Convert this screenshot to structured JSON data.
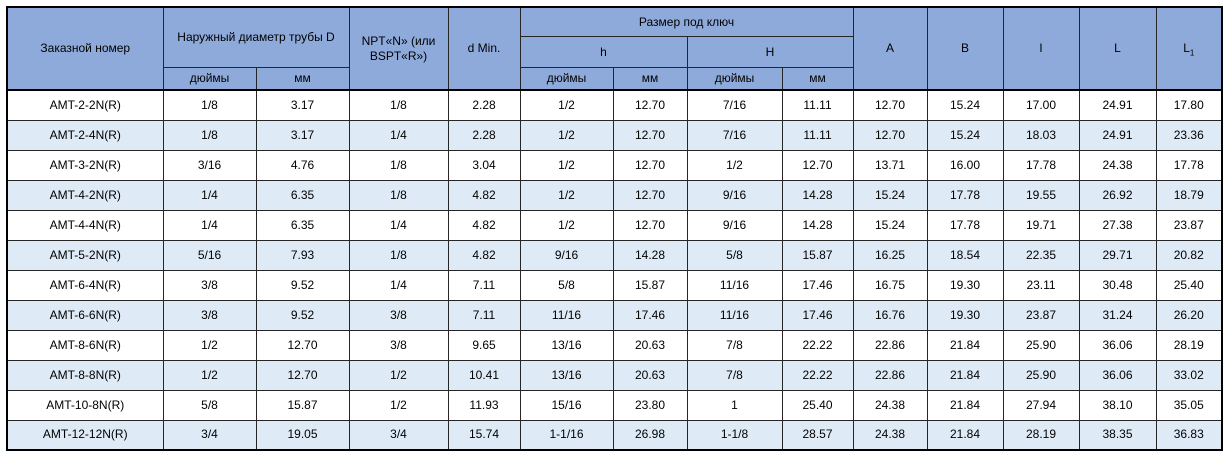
{
  "table": {
    "header": {
      "order_number": "Заказной номер",
      "outer_diameter": "Наружный диаметр трубы D",
      "npt": "NPT«N» (или BSPT«R»)",
      "d_min": "d Min.",
      "wrench_size": "Размер под ключ",
      "h_small": "h",
      "h_big": "H",
      "inches": "дюймы",
      "mm": "мм",
      "col_a": "A",
      "col_b": "B",
      "col_l_small": "l",
      "col_l": "L",
      "col_l1_base": "L",
      "col_l1_sub": "1"
    },
    "rows": [
      [
        "AMT-2-2N(R)",
        "1/8",
        "3.17",
        "1/8",
        "2.28",
        "1/2",
        "12.70",
        "7/16",
        "11.11",
        "12.70",
        "15.24",
        "17.00",
        "24.91",
        "17.80"
      ],
      [
        "AMT-2-4N(R)",
        "1/8",
        "3.17",
        "1/4",
        "2.28",
        "1/2",
        "12.70",
        "7/16",
        "11.11",
        "12.70",
        "15.24",
        "18.03",
        "24.91",
        "23.36"
      ],
      [
        "AMT-3-2N(R)",
        "3/16",
        "4.76",
        "1/8",
        "3.04",
        "1/2",
        "12.70",
        "1/2",
        "12.70",
        "13.71",
        "16.00",
        "17.78",
        "24.38",
        "17.78"
      ],
      [
        "AMT-4-2N(R)",
        "1/4",
        "6.35",
        "1/8",
        "4.82",
        "1/2",
        "12.70",
        "9/16",
        "14.28",
        "15.24",
        "17.78",
        "19.55",
        "26.92",
        "18.79"
      ],
      [
        "AMT-4-4N(R)",
        "1/4",
        "6.35",
        "1/4",
        "4.82",
        "1/2",
        "12.70",
        "9/16",
        "14.28",
        "15.24",
        "17.78",
        "19.71",
        "27.38",
        "23.87"
      ],
      [
        "AMT-5-2N(R)",
        "5/16",
        "7.93",
        "1/8",
        "4.82",
        "9/16",
        "14.28",
        "5/8",
        "15.87",
        "16.25",
        "18.54",
        "22.35",
        "29.71",
        "20.82"
      ],
      [
        "AMT-6-4N(R)",
        "3/8",
        "9.52",
        "1/4",
        "7.11",
        "5/8",
        "15.87",
        "11/16",
        "17.46",
        "16.75",
        "19.30",
        "23.11",
        "30.48",
        "25.40"
      ],
      [
        "AMT-6-6N(R)",
        "3/8",
        "9.52",
        "3/8",
        "7.11",
        "11/16",
        "17.46",
        "11/16",
        "17.46",
        "16.76",
        "19.30",
        "23.87",
        "31.24",
        "26.20"
      ],
      [
        "AMT-8-6N(R)",
        "1/2",
        "12.70",
        "3/8",
        "9.65",
        "13/16",
        "20.63",
        "7/8",
        "22.22",
        "22.86",
        "21.84",
        "25.90",
        "36.06",
        "28.19"
      ],
      [
        "AMT-8-8N(R)",
        "1/2",
        "12.70",
        "1/2",
        "10.41",
        "13/16",
        "20.63",
        "7/8",
        "22.22",
        "22.86",
        "21.84",
        "25.90",
        "36.06",
        "33.02"
      ],
      [
        "AMT-10-8N(R)",
        "5/8",
        "15.87",
        "1/2",
        "11.93",
        "15/16",
        "23.80",
        "1",
        "25.40",
        "24.38",
        "21.84",
        "27.94",
        "38.10",
        "35.05"
      ],
      [
        "AMT-12-12N(R)",
        "3/4",
        "19.05",
        "3/4",
        "15.74",
        "1-1/16",
        "26.98",
        "1-1/8",
        "28.57",
        "24.38",
        "21.84",
        "28.19",
        "38.35",
        "36.83"
      ]
    ]
  },
  "colors": {
    "header_background": "#8EAADB",
    "row_alternate_background": "#DEEAF6",
    "row_background": "#FFFFFF",
    "border": "#262626",
    "outer_border": "#000000",
    "text": "#000000"
  }
}
